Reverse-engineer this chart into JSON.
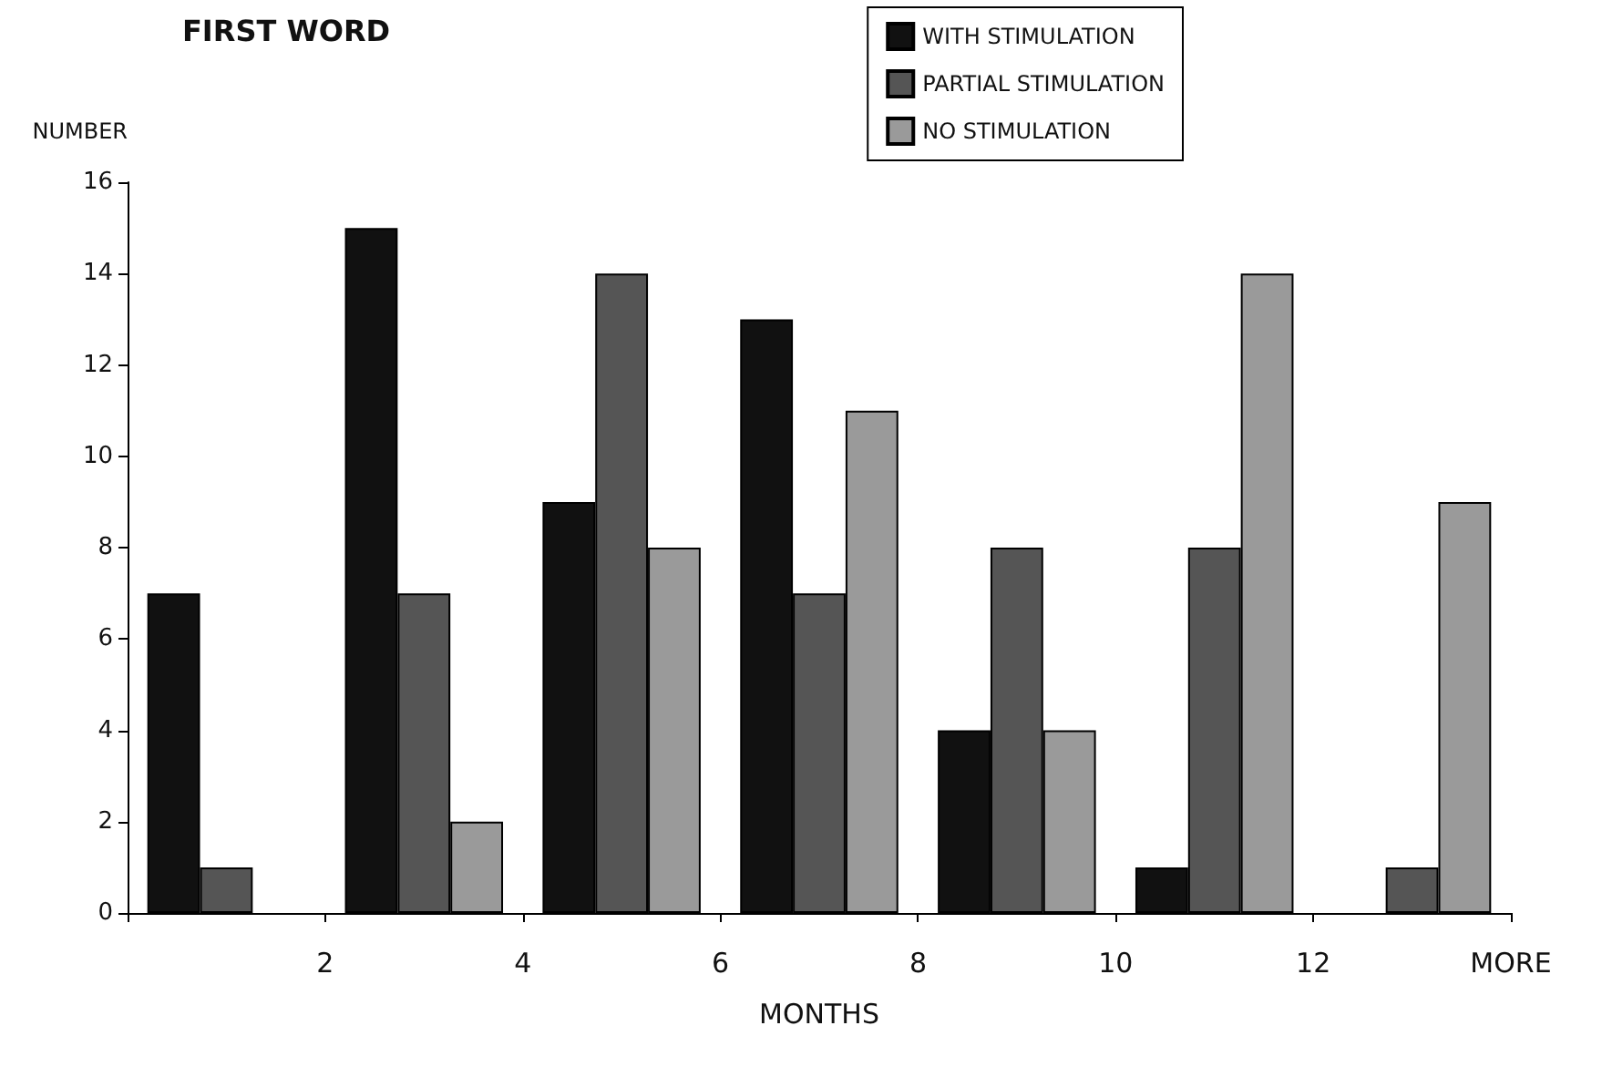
{
  "chart_data": {
    "type": "bar",
    "title": "FIRST WORD",
    "xlabel": "MONTHS",
    "ylabel": "NUMBER",
    "x": [
      1,
      3,
      5,
      7,
      9,
      11,
      13
    ],
    "series": [
      {
        "name": "WITH STIMULATION",
        "color": "#111111",
        "values": [
          7,
          15,
          9,
          13,
          4,
          1,
          0
        ]
      },
      {
        "name": "PARTIAL STIMULATION",
        "color": "#555555",
        "values": [
          1,
          7,
          14,
          7,
          8,
          8,
          1
        ]
      },
      {
        "name": "NO STIMULATION",
        "color": "#9a9a9a",
        "values": [
          0,
          2,
          8,
          11,
          4,
          14,
          9
        ]
      }
    ],
    "xlim": [
      0,
      14
    ],
    "xticks": [
      {
        "value": 0,
        "label": null
      },
      2,
      4,
      6,
      8,
      10,
      12,
      {
        "value": 14,
        "label": "MORE"
      }
    ],
    "ylim": [
      0,
      16
    ],
    "yticks": [
      0,
      2,
      4,
      6,
      8,
      10,
      12,
      14,
      16
    ],
    "grid": false,
    "legend": "top right"
  }
}
